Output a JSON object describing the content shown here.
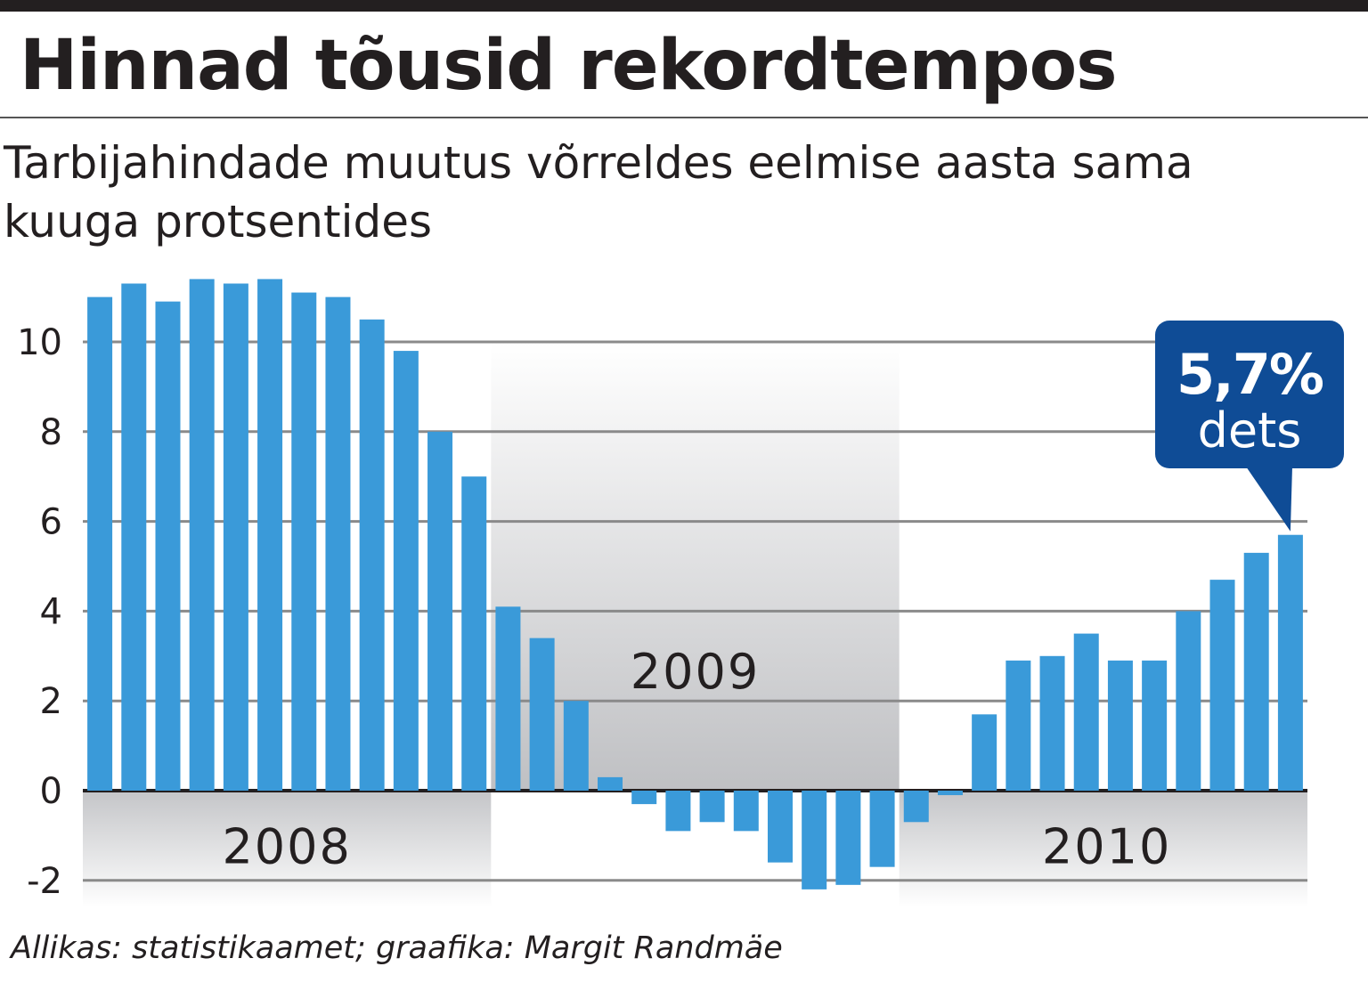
{
  "title": "Hinnad tõusid rekordtempos",
  "subtitle": "Tarbijahindade muutus võrreldes eelmise aasta sama kuuga protsentides",
  "source": "Allikas: statistikaamet; graafika: Margit Randmäe",
  "colors": {
    "bar": "#3a9ad9",
    "callout": "#0f4c96",
    "grid": "#8a8a8a",
    "year_band": "#d7d8da",
    "text": "#231f20"
  },
  "chart_data": {
    "type": "bar",
    "title": "Hinnad tõusid rekordtempos",
    "subtitle": "Tarbijahindade muutus võrreldes eelmise aasta sama kuuga protsentides",
    "ylim": [
      -2,
      12
    ],
    "yticks": [
      -2,
      0,
      2,
      4,
      6,
      8,
      10
    ],
    "grid": true,
    "years": [
      "2008",
      "2009",
      "2010"
    ],
    "values": [
      11.0,
      11.3,
      10.9,
      11.4,
      11.3,
      11.4,
      11.1,
      11.0,
      10.5,
      9.8,
      8.0,
      7.0,
      4.1,
      3.4,
      2.0,
      0.3,
      -0.3,
      -0.9,
      -0.7,
      -0.9,
      -1.6,
      -2.2,
      -2.1,
      -1.7,
      -0.7,
      -0.1,
      1.7,
      2.9,
      3.0,
      3.5,
      2.9,
      2.9,
      4.0,
      4.7,
      5.3,
      5.7
    ],
    "callout": {
      "value": "5,7%",
      "label": "dets"
    }
  }
}
